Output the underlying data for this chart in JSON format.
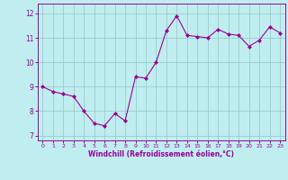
{
  "x": [
    0,
    1,
    2,
    3,
    4,
    5,
    6,
    7,
    8,
    9,
    10,
    11,
    12,
    13,
    14,
    15,
    16,
    17,
    18,
    19,
    20,
    21,
    22,
    23
  ],
  "y": [
    9.0,
    8.8,
    8.7,
    8.6,
    8.0,
    7.5,
    7.4,
    7.9,
    7.6,
    9.4,
    9.35,
    10.0,
    11.3,
    11.9,
    11.1,
    11.05,
    11.0,
    11.35,
    11.15,
    11.1,
    10.65,
    10.9,
    11.45,
    11.2
  ],
  "line_color": "#990099",
  "marker": "D",
  "marker_size": 2,
  "bg_color": "#c0eef0",
  "grid_color": "#99cccc",
  "xlabel": "Windchill (Refroidissement éolien,°C)",
  "xlabel_color": "#990099",
  "tick_color": "#990099",
  "ylim": [
    6.8,
    12.4
  ],
  "yticks": [
    7,
    8,
    9,
    10,
    11,
    12
  ],
  "xlim": [
    -0.5,
    23.5
  ],
  "xticks": [
    0,
    1,
    2,
    3,
    4,
    5,
    6,
    7,
    8,
    9,
    10,
    11,
    12,
    13,
    14,
    15,
    16,
    17,
    18,
    19,
    20,
    21,
    22,
    23
  ]
}
